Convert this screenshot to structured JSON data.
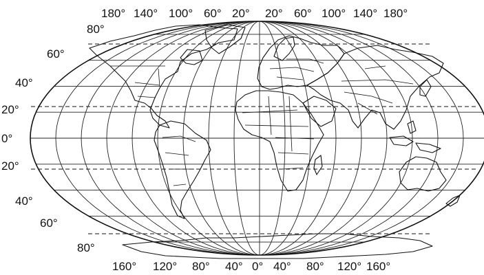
{
  "map": {
    "top_longitude_labels": [
      "180°",
      "140°",
      "100°",
      "60°",
      "20°",
      "20°",
      "60°",
      "100°",
      "140°",
      "180°"
    ],
    "bottom_longitude_labels": [
      "160°",
      "120°",
      "80°",
      "40°",
      "0°",
      "40°",
      "80°",
      "120°",
      "160°"
    ],
    "latitude_labels": [
      "80°",
      "60°",
      "40°",
      "20°",
      "0°",
      "20°",
      "40°",
      "60°",
      "80°"
    ],
    "dashed_parallels": [
      "Arctic Circle",
      "Tropic of Cancer",
      "Tropic of Capricorn",
      "Antarctic Circle"
    ]
  }
}
